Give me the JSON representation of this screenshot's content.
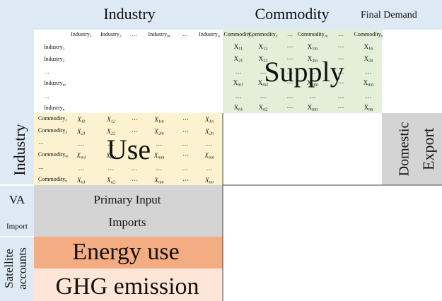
{
  "header": {
    "industry": "Industry",
    "commodity": "Commodity",
    "final_demand": "Final Demand"
  },
  "side": {
    "industry": "Industry",
    "va": "VA",
    "import": "Import",
    "satellite": [
      "Satellite",
      "accounts"
    ]
  },
  "industry_columns": [
    {
      "t": "Industry",
      "s": "1"
    },
    {
      "t": "Industry",
      "s": "2"
    },
    {
      "t": "…"
    },
    {
      "t": "Industry",
      "s": "m"
    },
    {
      "t": "…"
    },
    {
      "t": "Industry",
      "s": "n"
    }
  ],
  "industry_rows": [
    {
      "t": "Industry",
      "s": "1"
    },
    {
      "t": "Industry",
      "s": "2"
    },
    {
      "t": "…"
    },
    {
      "t": "Industry",
      "s": "m"
    },
    {
      "t": "…"
    },
    {
      "t": "Industry",
      "s": "n"
    }
  ],
  "commodity_columns": [
    {
      "t": "Commodity",
      "s": "1"
    },
    {
      "t": "Commodity",
      "s": "2"
    },
    {
      "t": "…"
    },
    {
      "t": "Commodity",
      "s": "m"
    },
    {
      "t": "…"
    },
    {
      "t": "Commodity",
      "s": "n"
    }
  ],
  "commodity_rows": [
    {
      "t": "Commodity",
      "s": "1"
    },
    {
      "t": "Commodity",
      "s": "2"
    },
    {
      "t": "…"
    },
    {
      "t": "Commodity",
      "s": "m"
    },
    {
      "t": "…"
    },
    {
      "t": "Commodity",
      "s": "n"
    }
  ],
  "supply": {
    "label": "Supply",
    "cells": [
      [
        {
          "t": "X",
          "s": "11"
        },
        {
          "t": "X",
          "s": "12"
        },
        {
          "t": "⋯"
        },
        {
          "t": "X",
          "s": "1m"
        },
        {
          "t": "⋯"
        },
        {
          "t": "X",
          "s": "1n"
        }
      ],
      [
        {
          "t": "X",
          "s": "21"
        },
        {
          "t": "X",
          "s": "22"
        },
        {
          "t": "⋯"
        },
        {
          "t": "X",
          "s": "2m"
        },
        {
          "t": "⋯"
        },
        {
          "t": "X",
          "s": "2n"
        }
      ],
      [
        {
          "t": "…"
        },
        {
          "t": "…"
        },
        {
          "t": "…"
        },
        {
          "t": "…"
        },
        {
          "t": "…"
        },
        {
          "t": "…"
        }
      ],
      [
        {
          "t": "X",
          "s": "m1"
        },
        {
          "t": "X",
          "s": "m2"
        },
        {
          "t": "⋯"
        },
        {
          "t": "X",
          "s": "mm"
        },
        {
          "t": "⋯"
        },
        {
          "t": "X",
          "s": "mn"
        }
      ],
      [
        {
          "t": "…"
        },
        {
          "t": "…"
        },
        {
          "t": "…"
        },
        {
          "t": "…"
        },
        {
          "t": "…"
        },
        {
          "t": "…"
        }
      ],
      [
        {
          "t": "X",
          "s": "n1"
        },
        {
          "t": "X",
          "s": "n2"
        },
        {
          "t": "⋯"
        },
        {
          "t": "X",
          "s": "nm"
        },
        {
          "t": "⋯"
        },
        {
          "t": "X",
          "s": "nn"
        }
      ]
    ]
  },
  "use": {
    "label": "Use",
    "cells": [
      [
        {
          "t": "X",
          "s": "11"
        },
        {
          "t": "X",
          "s": "12"
        },
        {
          "t": "⋯"
        },
        {
          "t": "X",
          "s": "1m"
        },
        {
          "t": "⋯"
        },
        {
          "t": "X",
          "s": "1n"
        }
      ],
      [
        {
          "t": "X",
          "s": "21"
        },
        {
          "t": "X",
          "s": "22"
        },
        {
          "t": "⋯"
        },
        {
          "t": "X",
          "s": "2m"
        },
        {
          "t": "⋯"
        },
        {
          "t": "X",
          "s": "2n"
        }
      ],
      [
        {
          "t": "…"
        },
        {
          "t": "…"
        },
        {
          "t": "…"
        },
        {
          "t": "…"
        },
        {
          "t": "…"
        },
        {
          "t": "…"
        }
      ],
      [
        {
          "t": "X",
          "s": "m1"
        },
        {
          "t": "X",
          "s": "m2"
        },
        {
          "t": "⋯"
        },
        {
          "t": "X",
          "s": "mm"
        },
        {
          "t": "⋯"
        },
        {
          "t": "X",
          "s": "mn"
        }
      ],
      [
        {
          "t": "…"
        },
        {
          "t": "…"
        },
        {
          "t": "…"
        },
        {
          "t": "…"
        },
        {
          "t": "…"
        },
        {
          "t": "…"
        }
      ],
      [
        {
          "t": "X",
          "s": "n1"
        },
        {
          "t": "X",
          "s": "n2"
        },
        {
          "t": "⋯"
        },
        {
          "t": "X",
          "s": "nm"
        },
        {
          "t": "⋯"
        },
        {
          "t": "X",
          "s": "nn"
        }
      ]
    ]
  },
  "final_demand": [
    "Domestic",
    "Export"
  ],
  "value_added": [
    "Primary Input",
    "Imports"
  ],
  "satellite_rows": [
    "Energy use",
    "GHG emission"
  ]
}
